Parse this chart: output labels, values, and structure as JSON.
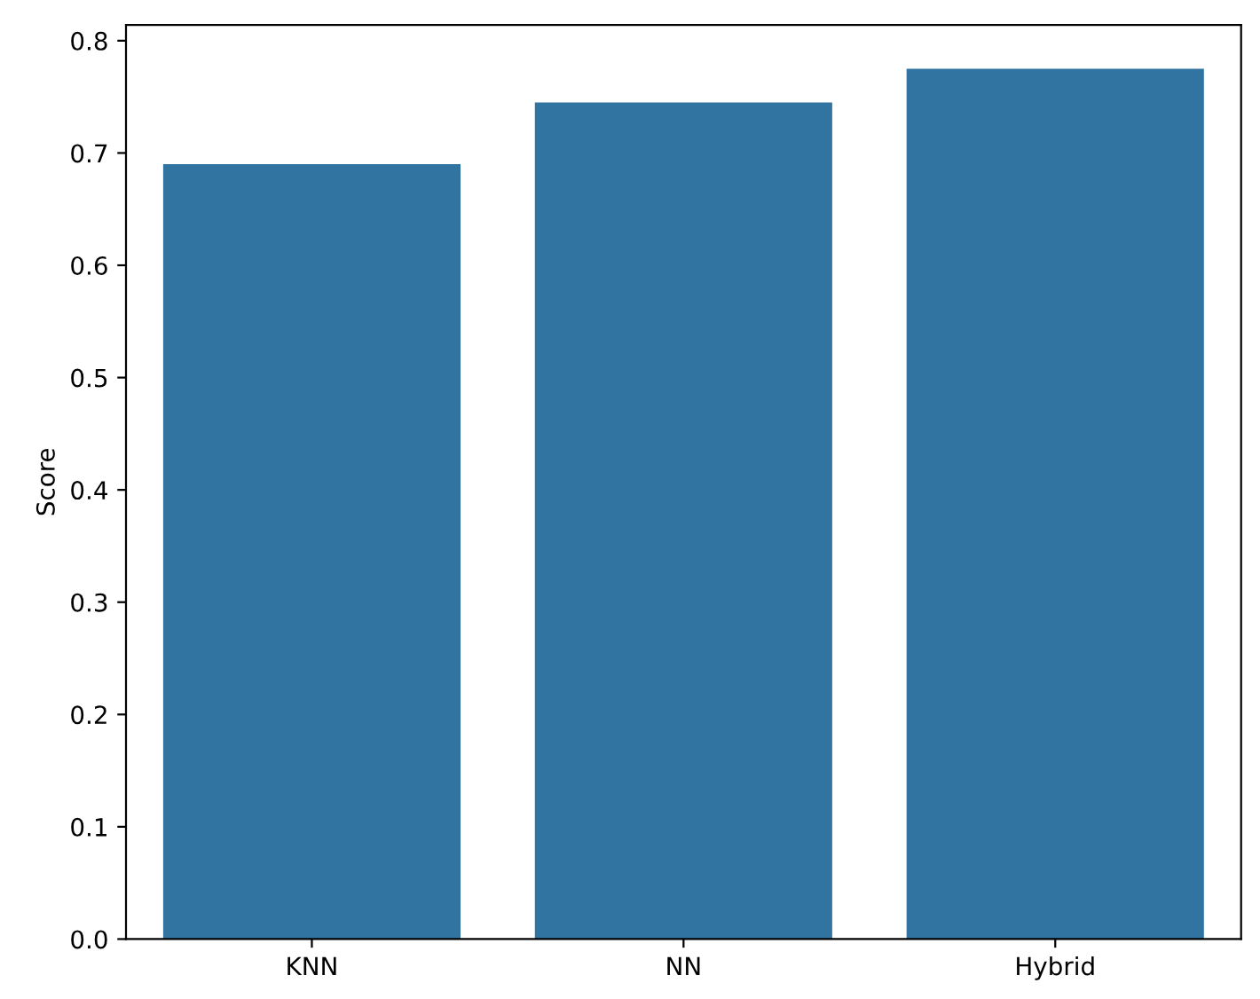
{
  "chart_data": {
    "type": "bar",
    "ylabel": "Score",
    "categories": [
      "KNN",
      "NN",
      "Hybrid"
    ],
    "values": [
      0.69,
      0.745,
      0.775
    ],
    "color": "#3274a1",
    "ylim": [
      0,
      0.814
    ],
    "yticks": [
      {
        "value": 0,
        "label": "0.0"
      },
      0.1,
      0.2,
      0.3,
      0.4,
      0.5,
      0.6,
      0.7,
      0.8
    ]
  }
}
